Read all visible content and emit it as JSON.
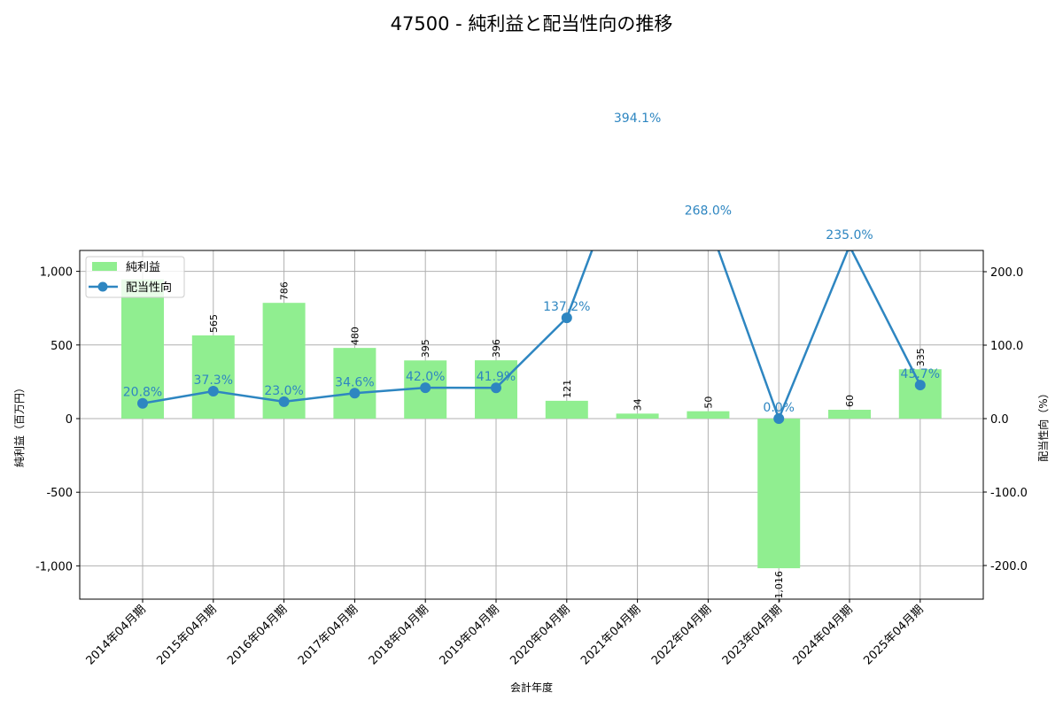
{
  "chart_data": {
    "type": "bar+line",
    "title": "47500 - 純利益と配当性向の推移",
    "xlabel": "会計年度",
    "ylabel_left": "純利益（百万円）",
    "ylabel_right": "配当性向（%）",
    "categories": [
      "2014年04月期",
      "2015年04月期",
      "2016年04月期",
      "2017年04月期",
      "2018年04月期",
      "2019年04月期",
      "2020年04月期",
      "2021年04月期",
      "2022年04月期",
      "2023年04月期",
      "2024年04月期",
      "2025年04月期"
    ],
    "series": [
      {
        "name": "純利益",
        "type": "bar",
        "axis": "left",
        "color": "#90ee90",
        "values": [
          945,
          565,
          786,
          480,
          395,
          396,
          121,
          34,
          50,
          -1016,
          60,
          335
        ],
        "labels": [
          "",
          "565",
          "786",
          "480",
          "395",
          "396",
          "121",
          "34",
          "50",
          "-1,016",
          "60",
          "335"
        ]
      },
      {
        "name": "配当性向",
        "type": "line",
        "axis": "right",
        "color": "#2e86c1",
        "values": [
          20.8,
          37.3,
          23.0,
          34.6,
          42.0,
          41.9,
          137.2,
          394.1,
          268.0,
          0.0,
          235.0,
          45.7
        ],
        "labels": [
          "20.8%",
          "37.3%",
          "23.0%",
          "34.6%",
          "42.0%",
          "41.9%",
          "137.2%",
          "394.1%",
          "268.0%",
          "0.0%",
          "235.0%",
          "45.7%"
        ]
      }
    ],
    "ylim_left": [
      -1230,
      1145
    ],
    "ylim_right": [
      -245,
      225
    ],
    "yticks_left": [
      "1,000",
      "500",
      "0",
      "-500",
      "-1,000"
    ],
    "yticks_right": [
      "200.0",
      "100.0",
      "0.0",
      "-100.0",
      "-200.0"
    ],
    "grid": true,
    "legend_position": "upper left"
  }
}
